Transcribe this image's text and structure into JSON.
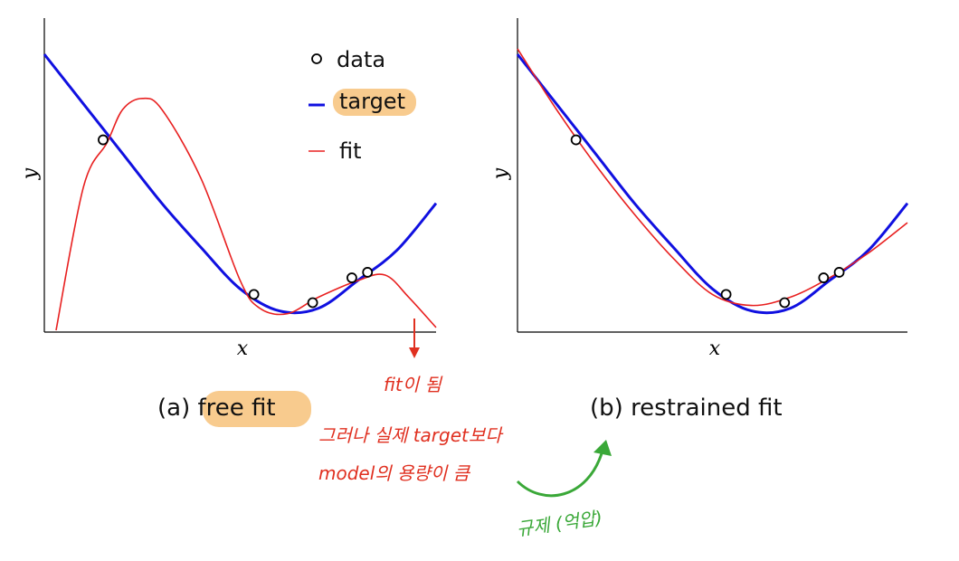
{
  "panels": [
    {
      "caption": "(a) free fit",
      "caption_prefix": "(a) ",
      "caption_main": "free fit",
      "xlabel": "x",
      "ylabel": "y"
    },
    {
      "caption": "(b) restrained fit",
      "caption_prefix": "(b) ",
      "caption_main": "restrained fit",
      "xlabel": "x",
      "ylabel": "y"
    }
  ],
  "legend": {
    "data": "data",
    "target": "target",
    "fit": "fit",
    "location": "top-right of panel (a)"
  },
  "annotations": {
    "arrow_note": "fit이 됨",
    "note_line1": "그러나 실제 target보다",
    "note_line2": "model의 용량이 큼",
    "green_note": "규제 (억압)"
  },
  "colors": {
    "target": "#1010e0",
    "fit": "#e82020",
    "highlight": "#f7c27a",
    "annotation_red": "#e03020",
    "annotation_green": "#3aa838"
  },
  "chart_data": [
    {
      "type": "line",
      "panel": "a",
      "xlabel": "x",
      "ylabel": "y",
      "grid": false,
      "xlim": [
        0,
        1
      ],
      "ylim": [
        0,
        1
      ],
      "target_curve": {
        "x": [
          0,
          0.1,
          0.2,
          0.3,
          0.4,
          0.5,
          0.6,
          0.7,
          0.8,
          0.9,
          1.0
        ],
        "y": [
          1.0,
          0.82,
          0.64,
          0.46,
          0.3,
          0.15,
          0.07,
          0.08,
          0.18,
          0.29,
          0.46
        ]
      },
      "fit_curve": {
        "x": [
          0.03,
          0.1,
          0.16,
          0.2,
          0.25,
          0.3,
          0.4,
          0.5,
          0.55,
          0.62,
          0.7,
          0.8,
          0.87,
          0.93,
          1.0
        ],
        "y": [
          0.0,
          0.52,
          0.68,
          0.8,
          0.84,
          0.8,
          0.55,
          0.18,
          0.08,
          0.06,
          0.12,
          0.18,
          0.2,
          0.12,
          0.01
        ]
      },
      "data_points": {
        "x": [
          0.15,
          0.535,
          0.685,
          0.785,
          0.825
        ],
        "y": [
          0.69,
          0.13,
          0.1,
          0.19,
          0.21
        ]
      }
    },
    {
      "type": "line",
      "panel": "b",
      "xlabel": "x",
      "ylabel": "y",
      "grid": false,
      "xlim": [
        0,
        1
      ],
      "ylim": [
        0,
        1
      ],
      "target_curve": {
        "x": [
          0,
          0.1,
          0.2,
          0.3,
          0.4,
          0.5,
          0.6,
          0.7,
          0.8,
          0.9,
          1.0
        ],
        "y": [
          1.0,
          0.82,
          0.64,
          0.46,
          0.3,
          0.15,
          0.07,
          0.08,
          0.18,
          0.29,
          0.46
        ]
      },
      "fit_curve": {
        "x": [
          0,
          0.1,
          0.2,
          0.3,
          0.4,
          0.5,
          0.6,
          0.7,
          0.8,
          0.9,
          1.0
        ],
        "y": [
          1.02,
          0.8,
          0.6,
          0.42,
          0.26,
          0.13,
          0.09,
          0.12,
          0.19,
          0.28,
          0.39
        ]
      },
      "data_points": {
        "x": [
          0.15,
          0.535,
          0.685,
          0.785,
          0.825
        ],
        "y": [
          0.69,
          0.13,
          0.1,
          0.19,
          0.21
        ]
      }
    }
  ]
}
